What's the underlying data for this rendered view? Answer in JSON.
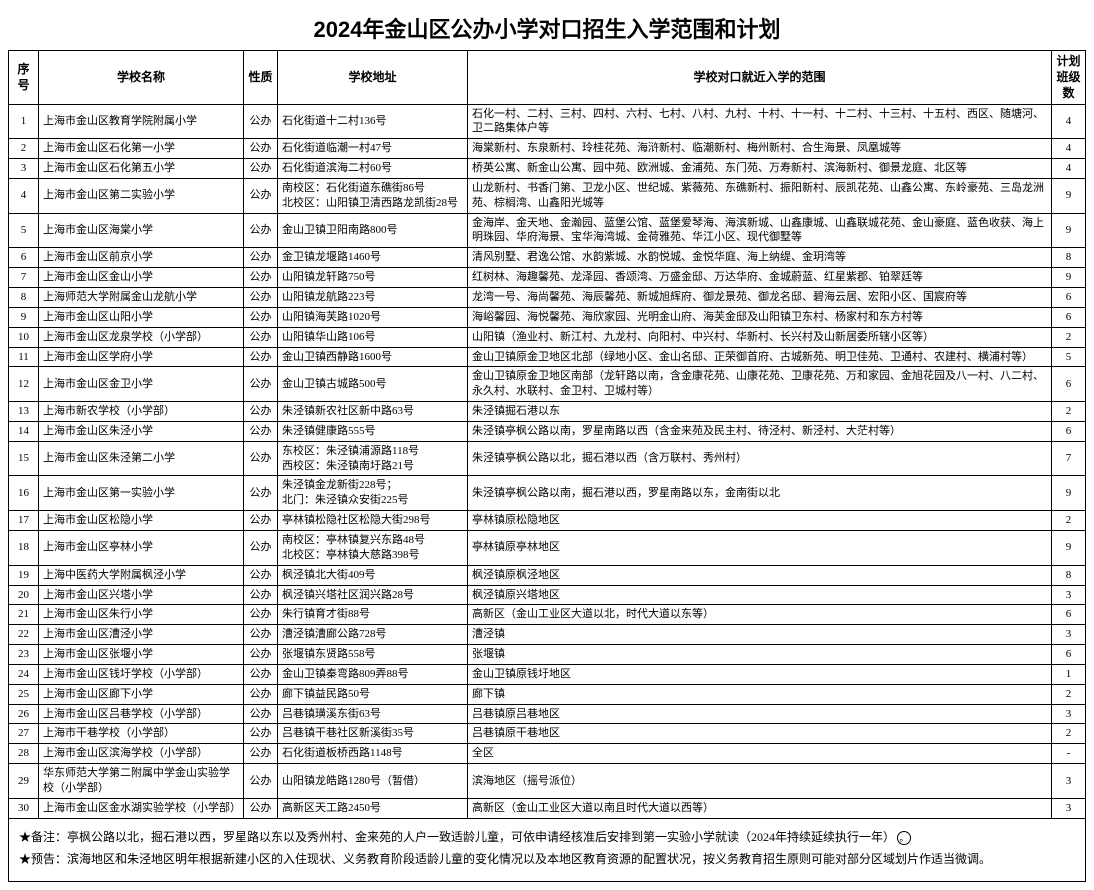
{
  "title": "2024年金山区公办小学对口招生入学范围和计划",
  "columns": {
    "idx": "序号",
    "name": "学校名称",
    "type": "性质",
    "addr": "学校地址",
    "scope": "学校对口就近入学的范围",
    "plan": "计划班级数"
  },
  "rows": [
    {
      "idx": "1",
      "name": "上海市金山区教育学院附属小学",
      "type": "公办",
      "addr": "石化街道十二村136号",
      "scope": "石化一村、二村、三村、四村、六村、七村、八村、九村、十村、十一村、十二村、十三村、十五村、西区、随塘河、卫二路集体户等",
      "plan": "4"
    },
    {
      "idx": "2",
      "name": "上海市金山区石化第一小学",
      "type": "公办",
      "addr": "石化街道临潮一村47号",
      "scope": "海棠新村、东泉新村、玲桂花苑、海浒新村、临潮新村、梅州新村、合生海景、凤凰城等",
      "plan": "4"
    },
    {
      "idx": "3",
      "name": "上海市金山区石化第五小学",
      "type": "公办",
      "addr": "石化街道滨海二村60号",
      "scope": "桥英公寓、新金山公寓、园中苑、欧洲城、金浦苑、东门苑、万寿新村、滨海新村、御景龙庭、北区等",
      "plan": "4"
    },
    {
      "idx": "4",
      "name": "上海市金山区第二实验小学",
      "type": "公办",
      "addr": "南校区：石化街道东礁街86号\n北校区：山阳镇卫清西路龙凯街28号",
      "scope": "山龙新村、书香门第、卫龙小区、世纪城、紫薇苑、东礁新村、振阳新村、辰凯花苑、山鑫公寓、东岭豪苑、三岛龙洲苑、棕榈湾、山鑫阳光城等",
      "plan": "9"
    },
    {
      "idx": "5",
      "name": "上海市金山区海棠小学",
      "type": "公办",
      "addr": "金山卫镇卫阳南路800号",
      "scope": "金海岸、金天地、金瀚园、蓝堡公馆、蓝堡爱琴海、海滨新城、山鑫康城、山鑫联城花苑、金山豪庭、蓝色收获、海上明珠园、华府海景、宝华海湾城、金荷雅苑、华江小区、现代御墅等",
      "plan": "9"
    },
    {
      "idx": "6",
      "name": "上海市金山区前京小学",
      "type": "公办",
      "addr": "金卫镇龙堰路1460号",
      "scope": "清风别墅、君逸公馆、水韵紫城、水韵悦城、金悦华庭、海上纳缇、金玥湾等",
      "plan": "8"
    },
    {
      "idx": "7",
      "name": "上海市金山区金山小学",
      "type": "公办",
      "addr": "山阳镇龙轩路750号",
      "scope": "红树林、海趣馨苑、龙泽园、香颂湾、万盛金邸、万达华府、金城蔚蓝、红星紫郡、铂翠廷等",
      "plan": "9"
    },
    {
      "idx": "8",
      "name": "上海师范大学附属金山龙航小学",
      "type": "公办",
      "addr": "山阳镇龙航路223号",
      "scope": "龙湾一号、海尚馨苑、海辰馨苑、新城旭辉府、御龙景苑、御龙名邸、碧海云居、宏阳小区、国宸府等",
      "plan": "6"
    },
    {
      "idx": "9",
      "name": "上海市金山区山阳小学",
      "type": "公办",
      "addr": "山阳镇海芙路1020号",
      "scope": "海峪馨园、海悦馨苑、海欣家园、光明金山府、海芙金邸及山阳镇卫东村、杨家村和东方村等",
      "plan": "6"
    },
    {
      "idx": "10",
      "name": "上海市金山区龙泉学校（小学部）",
      "type": "公办",
      "addr": "山阳镇华山路106号",
      "scope": "山阳镇（渔业村、新江村、九龙村、向阳村、中兴村、华新村、长兴村及山新居委所辖小区等）",
      "plan": "2"
    },
    {
      "idx": "11",
      "name": "上海市金山区学府小学",
      "type": "公办",
      "addr": "金山卫镇西静路1600号",
      "scope": "金山卫镇原金卫地区北部（绿地小区、金山名邸、正荣御首府、古城新苑、明卫佳苑、卫通村、农建村、横浦村等）",
      "plan": "5"
    },
    {
      "idx": "12",
      "name": "上海市金山区金卫小学",
      "type": "公办",
      "addr": "金山卫镇古城路500号",
      "scope": "金山卫镇原金卫地区南部（龙轩路以南，含金康花苑、山康花苑、卫康花苑、万和家园、金旭花园及八一村、八二村、永久村、水联村、金卫村、卫城村等）",
      "plan": "6"
    },
    {
      "idx": "13",
      "name": "上海市新农学校（小学部）",
      "type": "公办",
      "addr": "朱泾镇新农社区新中路63号",
      "scope": "朱泾镇掘石港以东",
      "plan": "2"
    },
    {
      "idx": "14",
      "name": "上海市金山区朱泾小学",
      "type": "公办",
      "addr": "朱泾镇健康路555号",
      "scope": "朱泾镇亭枫公路以南，罗星南路以西（含金来苑及民主村、待泾村、新泾村、大茫村等）",
      "plan": "6"
    },
    {
      "idx": "15",
      "name": "上海市金山区朱泾第二小学",
      "type": "公办",
      "addr": "东校区：朱泾镇浦源路118号\n西校区：朱泾镇南圩路21号",
      "scope": "朱泾镇亭枫公路以北，掘石港以西（含万联村、秀州村）",
      "plan": "7"
    },
    {
      "idx": "16",
      "name": "上海市金山区第一实验小学",
      "type": "公办",
      "addr": "朱泾镇金龙新街228号；\n北门：朱泾镇众安街225号",
      "scope": "朱泾镇亭枫公路以南，掘石港以西，罗星南路以东，金南街以北",
      "plan": "9"
    },
    {
      "idx": "17",
      "name": "上海市金山区松隐小学",
      "type": "公办",
      "addr": "亭林镇松隐社区松隐大街298号",
      "scope": "亭林镇原松隐地区",
      "plan": "2"
    },
    {
      "idx": "18",
      "name": "上海市金山区亭林小学",
      "type": "公办",
      "addr": "南校区：亭林镇复兴东路48号\n北校区：亭林镇大慈路398号",
      "scope": "亭林镇原亭林地区",
      "plan": "9"
    },
    {
      "idx": "19",
      "name": "上海中医药大学附属枫泾小学",
      "type": "公办",
      "addr": "枫泾镇北大街409号",
      "scope": "枫泾镇原枫泾地区",
      "plan": "8"
    },
    {
      "idx": "20",
      "name": "上海市金山区兴塔小学",
      "type": "公办",
      "addr": "枫泾镇兴塔社区润兴路28号",
      "scope": "枫泾镇原兴塔地区",
      "plan": "3"
    },
    {
      "idx": "21",
      "name": "上海市金山区朱行小学",
      "type": "公办",
      "addr": "朱行镇育才街88号",
      "scope": "高新区（金山工业区大道以北，时代大道以东等）",
      "plan": "6"
    },
    {
      "idx": "22",
      "name": "上海市金山区漕泾小学",
      "type": "公办",
      "addr": "漕泾镇漕廊公路728号",
      "scope": "漕泾镇",
      "plan": "3"
    },
    {
      "idx": "23",
      "name": "上海市金山区张堰小学",
      "type": "公办",
      "addr": "张堰镇东贤路558号",
      "scope": "张堰镇",
      "plan": "6"
    },
    {
      "idx": "24",
      "name": "上海市金山区钱圩学校（小学部）",
      "type": "公办",
      "addr": "金山卫镇秦弯路809弄88号",
      "scope": "金山卫镇原钱圩地区",
      "plan": "1"
    },
    {
      "idx": "25",
      "name": "上海市金山区廊下小学",
      "type": "公办",
      "addr": "廊下镇益民路50号",
      "scope": "廊下镇",
      "plan": "2"
    },
    {
      "idx": "26",
      "name": "上海市金山区吕巷学校（小学部）",
      "type": "公办",
      "addr": "吕巷镇璜溪东街63号",
      "scope": "吕巷镇原吕巷地区",
      "plan": "3"
    },
    {
      "idx": "27",
      "name": "上海市干巷学校（小学部）",
      "type": "公办",
      "addr": "吕巷镇干巷社区新溪街35号",
      "scope": "吕巷镇原干巷地区",
      "plan": "2"
    },
    {
      "idx": "28",
      "name": "上海市金山区滨海学校（小学部）",
      "type": "公办",
      "addr": "石化街道板桥西路1148号",
      "scope": "全区",
      "plan": "-"
    },
    {
      "idx": "29",
      "name": "华东师范大学第二附属中学金山实验学校（小学部）",
      "type": "公办",
      "addr": "山阳镇龙皓路1280号（暂借）",
      "scope": "滨海地区（摇号派位）",
      "plan": "3"
    },
    {
      "idx": "30",
      "name": "上海市金山区金水湖实验学校（小学部）",
      "type": "公办",
      "addr": "高新区天工路2450号",
      "scope": "高新区（金山工业区大道以南且时代大道以西等）",
      "plan": "3"
    }
  ],
  "notes": {
    "line1": "★备注：亭枫公路以北，掘石港以西，罗星路以东以及秀州村、金来苑的人户一致适龄儿童，可依申请经核准后安排到第一实验小学就读（2024年持续延续执行一年）",
    "line1_end": "。",
    "line2": "★预告：滨海地区和朱泾地区明年根据新建小区的入住现状、义务教育阶段适龄儿童的变化情况以及本地区教育资源的配置状况，按义务教育招生原则可能对部分区域划片作适当微调。"
  }
}
